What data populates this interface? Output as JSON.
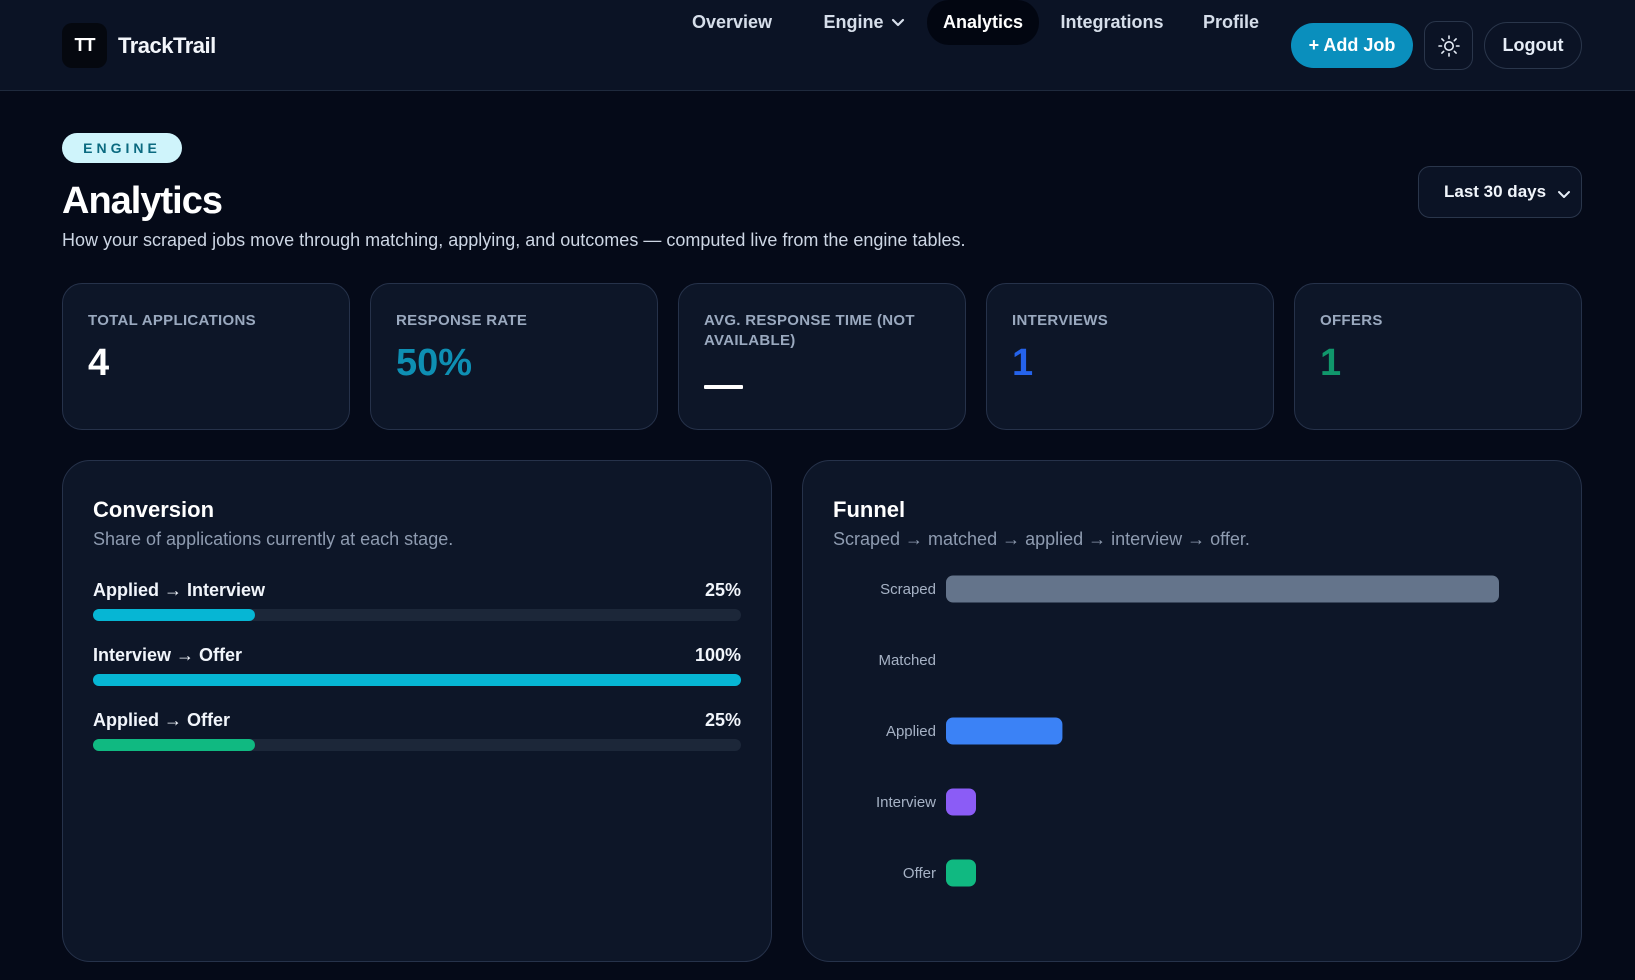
{
  "brand": {
    "logo": "TT",
    "name": "TrackTrail"
  },
  "nav": {
    "items": [
      {
        "label": "Overview"
      },
      {
        "label": "Engine",
        "has_dropdown": true
      },
      {
        "label": "Analytics",
        "active": true
      },
      {
        "label": "Integrations"
      },
      {
        "label": "Profile"
      }
    ],
    "add_job": "+ Add Job",
    "theme_icon": "sun-icon",
    "logout": "Logout"
  },
  "header": {
    "eyebrow": "ENGINE",
    "title": "Analytics",
    "subtitle": "How your scraped jobs move through matching, applying, and outcomes — computed live from the engine tables.",
    "range": "Last 30 days"
  },
  "stats": [
    {
      "label": "TOTAL APPLICATIONS",
      "value": "4",
      "color": "#ffffff"
    },
    {
      "label": "RESPONSE RATE",
      "value": "50%",
      "color": "#0e8fb3"
    },
    {
      "label": "AVG. RESPONSE TIME (NOT AVAILABLE)",
      "value": "—",
      "color": "#ffffff"
    },
    {
      "label": "INTERVIEWS",
      "value": "1",
      "color": "#2563eb"
    },
    {
      "label": "OFFERS",
      "value": "1",
      "color": "#10976b"
    }
  ],
  "conversion": {
    "title": "Conversion",
    "subtitle": "Share of applications currently at each stage.",
    "rows": [
      {
        "label": "Applied → Interview",
        "pct_label": "25%",
        "value": 0.25,
        "color": "#06b6d4"
      },
      {
        "label": "Interview → Offer",
        "pct_label": "100%",
        "value": 1.0,
        "color": "#06b6d4"
      },
      {
        "label": "Applied → Offer",
        "pct_label": "25%",
        "value": 0.25,
        "color": "#10b981"
      }
    ]
  },
  "funnel": {
    "title": "Funnel",
    "subtitle": "Scraped → matched → applied → interview → offer."
  },
  "chart_data": {
    "type": "bar",
    "orientation": "horizontal",
    "categories": [
      "Scraped",
      "Matched",
      "Applied",
      "Interview",
      "Offer"
    ],
    "values": [
      19,
      0,
      4,
      1,
      1
    ],
    "colors": [
      "#64748b",
      "#64748b",
      "#3b82f6",
      "#8b5cf6",
      "#10b981"
    ],
    "grid": false,
    "legend": "none"
  }
}
